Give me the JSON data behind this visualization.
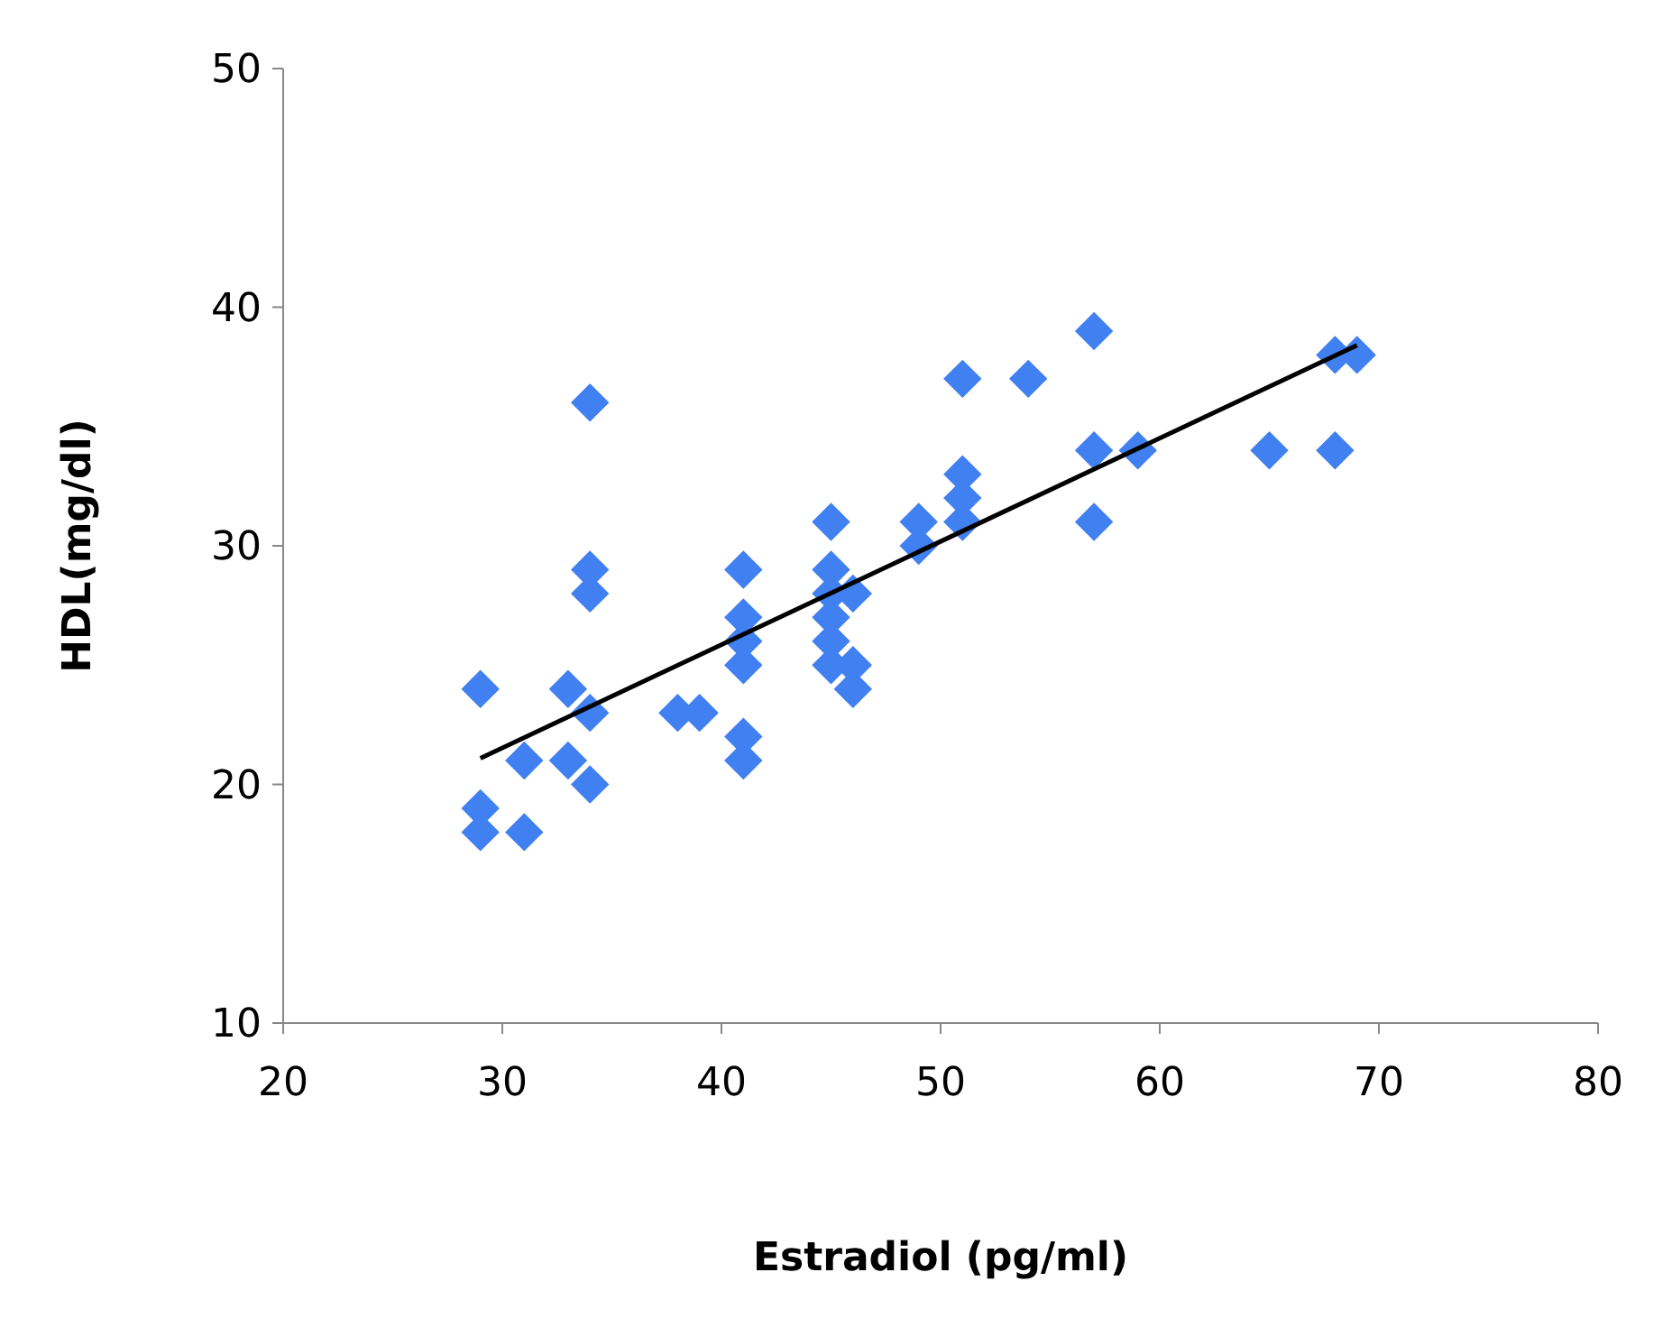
{
  "chart_data": {
    "type": "scatter",
    "xlabel": "Estradiol (pg/ml)",
    "ylabel": "HDL(mg/dl)",
    "xlim": [
      20,
      80
    ],
    "ylim": [
      10,
      50
    ],
    "xticks": [
      20,
      30,
      40,
      50,
      60,
      70,
      80
    ],
    "yticks": [
      10,
      20,
      30,
      40,
      50
    ],
    "grid": false,
    "marker": "diamond",
    "series": [
      {
        "color": "#4080f0",
        "x": [
          29,
          29,
          29,
          31,
          31,
          33,
          33,
          34,
          34,
          34,
          34,
          34,
          38,
          39,
          41,
          41,
          41,
          41,
          41,
          41,
          45,
          45,
          45,
          45,
          45,
          45,
          46,
          46,
          46,
          49,
          49,
          51,
          51,
          51,
          51,
          54,
          57,
          57,
          57,
          59,
          65,
          68,
          68,
          69
        ],
        "values": [
          24,
          19,
          18,
          21,
          18,
          24,
          21,
          23,
          20,
          36,
          29,
          28,
          23,
          23,
          29,
          27,
          26,
          25,
          22,
          21,
          31,
          29,
          28,
          27,
          26,
          25,
          28,
          25,
          24,
          31,
          30,
          37,
          33,
          32,
          31,
          37,
          39,
          34,
          31,
          34,
          34,
          38,
          34,
          38
        ]
      },
      {
        "type": "line",
        "color": "#000000",
        "marker": "none",
        "x": [
          29,
          69
        ],
        "values": [
          21.1,
          38.4
        ]
      }
    ]
  }
}
